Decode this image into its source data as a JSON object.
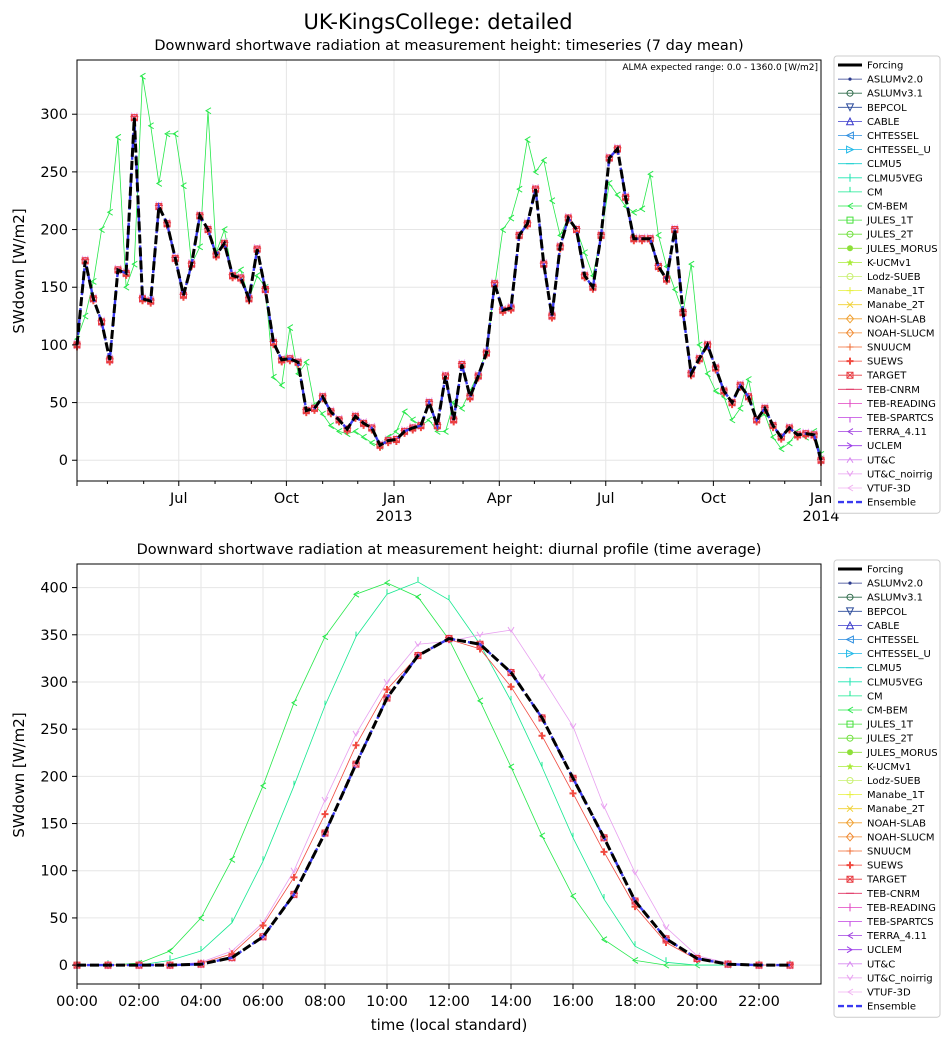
{
  "figure": {
    "title": "UK-KingsCollege: detailed"
  },
  "chart_data": [
    {
      "type": "line",
      "title": "Downward shortwave radiation at measurement height: timeseries (7 day mean)",
      "ylabel": "SWdown [W/m2]",
      "xlabel": "",
      "annotation": "ALMA expected range: 0.0 - 1360.0 [W/m2]",
      "x_unit": "date",
      "xlim": [
        "2012-04-05",
        "2014-01-01"
      ],
      "ylim": [
        -18,
        347
      ],
      "yticks": [
        0,
        50,
        100,
        150,
        200,
        250,
        300
      ],
      "xticks": [
        {
          "date": "2012-07-01",
          "label": "Jul",
          "sub": ""
        },
        {
          "date": "2012-10-01",
          "label": "Oct",
          "sub": ""
        },
        {
          "date": "2013-01-01",
          "label": "Jan",
          "sub": "2013"
        },
        {
          "date": "2013-04-01",
          "label": "Apr",
          "sub": ""
        },
        {
          "date": "2013-07-01",
          "label": "Jul",
          "sub": ""
        },
        {
          "date": "2013-10-01",
          "label": "Oct",
          "sub": ""
        },
        {
          "date": "2014-01-01",
          "label": "Jan",
          "sub": "2014"
        }
      ],
      "minor_xticks": [
        "2012-05-01",
        "2012-06-01",
        "2012-08-01",
        "2012-09-01",
        "2012-11-01",
        "2012-12-01",
        "2013-02-01",
        "2013-03-01",
        "2013-05-01",
        "2013-06-01",
        "2013-08-01",
        "2013-09-01",
        "2013-11-01",
        "2013-12-01"
      ],
      "grid": true,
      "legend_position": "outside right",
      "x": [
        "2012-04-05",
        "2012-04-12",
        "2012-04-19",
        "2012-04-26",
        "2012-05-03",
        "2012-05-10",
        "2012-05-17",
        "2012-05-24",
        "2012-05-31",
        "2012-06-07",
        "2012-06-14",
        "2012-06-21",
        "2012-06-28",
        "2012-07-05",
        "2012-07-12",
        "2012-07-19",
        "2012-07-26",
        "2012-08-02",
        "2012-08-09",
        "2012-08-16",
        "2012-08-23",
        "2012-08-30",
        "2012-09-06",
        "2012-09-13",
        "2012-09-20",
        "2012-09-27",
        "2012-10-04",
        "2012-10-11",
        "2012-10-18",
        "2012-10-25",
        "2012-11-01",
        "2012-11-08",
        "2012-11-15",
        "2012-11-22",
        "2012-11-29",
        "2012-12-06",
        "2012-12-13",
        "2012-12-20",
        "2012-12-27",
        "2013-01-03",
        "2013-01-10",
        "2013-01-17",
        "2013-01-24",
        "2013-01-31",
        "2013-02-07",
        "2013-02-14",
        "2013-02-21",
        "2013-02-28",
        "2013-03-07",
        "2013-03-14",
        "2013-03-21",
        "2013-03-28",
        "2013-04-04",
        "2013-04-11",
        "2013-04-18",
        "2013-04-25",
        "2013-05-02",
        "2013-05-09",
        "2013-05-16",
        "2013-05-23",
        "2013-05-30",
        "2013-06-06",
        "2013-06-13",
        "2013-06-20",
        "2013-06-27",
        "2013-07-04",
        "2013-07-11",
        "2013-07-18",
        "2013-07-25",
        "2013-08-01",
        "2013-08-08",
        "2013-08-15",
        "2013-08-22",
        "2013-08-29",
        "2013-09-05",
        "2013-09-12",
        "2013-09-19",
        "2013-09-26",
        "2013-10-03",
        "2013-10-10",
        "2013-10-17",
        "2013-10-24",
        "2013-10-31",
        "2013-11-07",
        "2013-11-14",
        "2013-11-21",
        "2013-11-28",
        "2013-12-05",
        "2013-12-12",
        "2013-12-19",
        "2013-12-26",
        "2014-01-01"
      ],
      "series": [
        {
          "name": "Forcing",
          "values": [
            100,
            173,
            140,
            120,
            87,
            165,
            162,
            297,
            140,
            138,
            220,
            205,
            175,
            143,
            170,
            212,
            200,
            178,
            188,
            160,
            158,
            140,
            183,
            148,
            102,
            87,
            88,
            85,
            43,
            45,
            55,
            42,
            35,
            27,
            38,
            32,
            28,
            13,
            17,
            18,
            25,
            28,
            30,
            50,
            30,
            73,
            35,
            83,
            55,
            73,
            93,
            153,
            130,
            132,
            195,
            205,
            235,
            170,
            125,
            185,
            210,
            200,
            160,
            150,
            195,
            262,
            270,
            228,
            192,
            192,
            192,
            168,
            157,
            200,
            128,
            75,
            88,
            100,
            80,
            60,
            50,
            65,
            55,
            35,
            45,
            30,
            20,
            28,
            22,
            23,
            22,
            0
          ]
        },
        {
          "name": "CM-BEM",
          "values": [
            105,
            125,
            155,
            200,
            215,
            280,
            150,
            170,
            333,
            290,
            240,
            283,
            283,
            238,
            170,
            185,
            303,
            180,
            200,
            160,
            165,
            140,
            160,
            150,
            72,
            65,
            115,
            75,
            85,
            48,
            40,
            30,
            25,
            23,
            25,
            20,
            15,
            12,
            20,
            25,
            42,
            35,
            30,
            35,
            25,
            25,
            50,
            45,
            60,
            75,
            95,
            150,
            200,
            210,
            235,
            278,
            250,
            260,
            225,
            195,
            210,
            200,
            180,
            160,
            195,
            240,
            230,
            220,
            215,
            218,
            248,
            195,
            168,
            148,
            128,
            170,
            100,
            75,
            60,
            55,
            35,
            45,
            70,
            35,
            40,
            20,
            10,
            15,
            25,
            20,
            25,
            5
          ]
        }
      ],
      "ensemble_name": "Ensemble",
      "legend": [
        "Forcing",
        "ASLUMv2.0",
        "ASLUMv3.1",
        "BEPCOL",
        "CABLE",
        "CHTESSEL",
        "CHTESSEL_U",
        "CLMU5",
        "CLMU5VEG",
        "CM",
        "CM-BEM",
        "JULES_1T",
        "JULES_2T",
        "JULES_MORUS",
        "K-UCMv1",
        "Lodz-SUEB",
        "Manabe_1T",
        "Manabe_2T",
        "NOAH-SLAB",
        "NOAH-SLUCM",
        "SNUUCM",
        "SUEWS",
        "TARGET",
        "TEB-CNRM",
        "TEB-READING",
        "TEB-SPARTCS",
        "TERRA_4.11",
        "UCLEM",
        "UT&C",
        "UT&C_noirrig",
        "VTUF-3D",
        "Ensemble"
      ]
    },
    {
      "type": "line",
      "title": "Downward shortwave radiation at measurement height: diurnal profile (time average)",
      "ylabel": "SWdown [W/m2]",
      "xlabel": "time (local standard)",
      "xlim": [
        0,
        24
      ],
      "ylim": [
        -20,
        425
      ],
      "yticks": [
        0,
        50,
        100,
        150,
        200,
        250,
        300,
        350,
        400
      ],
      "xticks": [
        {
          "hour": 0,
          "label": "00:00"
        },
        {
          "hour": 2,
          "label": "02:00"
        },
        {
          "hour": 4,
          "label": "04:00"
        },
        {
          "hour": 6,
          "label": "06:00"
        },
        {
          "hour": 8,
          "label": "08:00"
        },
        {
          "hour": 10,
          "label": "10:00"
        },
        {
          "hour": 12,
          "label": "12:00"
        },
        {
          "hour": 14,
          "label": "14:00"
        },
        {
          "hour": 16,
          "label": "16:00"
        },
        {
          "hour": 18,
          "label": "18:00"
        },
        {
          "hour": 20,
          "label": "20:00"
        },
        {
          "hour": 22,
          "label": "22:00"
        }
      ],
      "grid": true,
      "legend_position": "outside right",
      "x": [
        0,
        1,
        2,
        3,
        4,
        5,
        6,
        7,
        8,
        9,
        10,
        11,
        12,
        13,
        14,
        15,
        16,
        17,
        18,
        19,
        20,
        21,
        22,
        23
      ],
      "series": [
        {
          "name": "Forcing",
          "values": [
            0,
            0,
            0,
            0,
            1,
            8,
            30,
            75,
            140,
            213,
            283,
            328,
            346,
            340,
            310,
            262,
            198,
            135,
            68,
            28,
            7,
            1,
            0,
            0
          ]
        },
        {
          "name": "CM-BEM",
          "values": [
            0,
            0,
            2,
            15,
            50,
            112,
            190,
            278,
            348,
            393,
            405,
            390,
            345,
            280,
            210,
            137,
            73,
            27,
            5,
            0,
            0,
            0,
            0,
            0
          ]
        },
        {
          "name": "CM",
          "values": [
            0,
            0,
            0,
            5,
            15,
            45,
            110,
            190,
            275,
            348,
            393,
            406,
            387,
            340,
            280,
            210,
            135,
            70,
            20,
            3,
            0,
            0,
            0,
            0
          ]
        },
        {
          "name": "UT&C_noirrig",
          "values": [
            0,
            0,
            0,
            0,
            3,
            15,
            45,
            100,
            175,
            245,
            300,
            340,
            343,
            350,
            355,
            305,
            253,
            168,
            98,
            40,
            10,
            2,
            0,
            0
          ]
        },
        {
          "name": "SUEWS",
          "values": [
            0,
            0,
            0,
            0,
            2,
            12,
            42,
            93,
            160,
            233,
            292,
            328,
            345,
            335,
            295,
            243,
            182,
            120,
            62,
            24,
            6,
            1,
            0,
            0
          ]
        }
      ],
      "ensemble_name": "Ensemble",
      "legend": [
        "Forcing",
        "ASLUMv2.0",
        "ASLUMv3.1",
        "BEPCOL",
        "CABLE",
        "CHTESSEL",
        "CHTESSEL_U",
        "CLMU5",
        "CLMU5VEG",
        "CM",
        "CM-BEM",
        "JULES_1T",
        "JULES_2T",
        "JULES_MORUS",
        "K-UCMv1",
        "Lodz-SUEB",
        "Manabe_1T",
        "Manabe_2T",
        "NOAH-SLAB",
        "NOAH-SLUCM",
        "SNUUCM",
        "SUEWS",
        "TARGET",
        "TEB-CNRM",
        "TEB-READING",
        "TEB-SPARTCS",
        "TERRA_4.11",
        "UCLEM",
        "UT&C",
        "UT&C_noirrig",
        "VTUF-3D",
        "Ensemble"
      ]
    }
  ],
  "colors": {
    "Forcing": "#000000",
    "ASLUMv2.0": "#2b3a8c",
    "ASLUMv3.1": "#2f6b4a",
    "BEPCOL": "#2a4a9a",
    "CABLE": "#3a3acc",
    "CHTESSEL": "#2f8fe0",
    "CHTESSEL_U": "#1fb8e8",
    "CLMU5": "#18d0d0",
    "CLMU5VEG": "#1ae6b0",
    "CM": "#14e890",
    "CM-BEM": "#26e84a",
    "JULES_1T": "#44e03a",
    "JULES_2T": "#6ee03a",
    "JULES_MORUS": "#8ee03a",
    "K-UCMv1": "#aaec3a",
    "Lodz-SUEB": "#c8f070",
    "Manabe_1T": "#e6f03c",
    "Manabe_2T": "#f0d030",
    "NOAH-SLAB": "#f0a030",
    "NOAH-SLUCM": "#f08a30",
    "SNUUCM": "#f06a30",
    "SUEWS": "#f04a40",
    "TARGET": "#e83a40",
    "TEB-CNRM": "#e03060",
    "TEB-READING": "#e040c0",
    "TEB-SPARTCS": "#c040e0",
    "TERRA_4.11": "#a040e0",
    "UCLEM": "#9a3ae8",
    "UT&C": "#d88af0",
    "UT&C_noirrig": "#e8a0f0",
    "VTUF-3D": "#f0b0f0",
    "Ensemble": "#3a3af0"
  },
  "markers": {
    "Forcing": "none",
    "ASLUMv2.0": "dot",
    "ASLUMv3.1": "circle",
    "BEPCOL": "tri-down",
    "CABLE": "tri-up",
    "CHTESSEL": "tri-left",
    "CHTESSEL_U": "tri-right",
    "CLMU5": "hline",
    "CLMU5VEG": "vline",
    "CM": "tick-up",
    "CM-BEM": "caret-left",
    "JULES_1T": "square",
    "JULES_2T": "octagon",
    "JULES_MORUS": "filled-circle",
    "K-UCMv1": "star",
    "Lodz-SUEB": "hexagon",
    "Manabe_1T": "plus",
    "Manabe_2T": "x",
    "NOAH-SLAB": "diamond",
    "NOAH-SLUCM": "thin-diamond",
    "SNUUCM": "plus",
    "SUEWS": "plus-filled",
    "TARGET": "square-x",
    "TEB-CNRM": "hline",
    "TEB-READING": "vline",
    "TEB-SPARTCS": "tick-down",
    "TERRA_4.11": "caret-left",
    "UCLEM": "caret-right",
    "UT&C": "caret-up",
    "UT&C_noirrig": "caret-down",
    "VTUF-3D": "caret-left",
    "Ensemble": "none"
  }
}
